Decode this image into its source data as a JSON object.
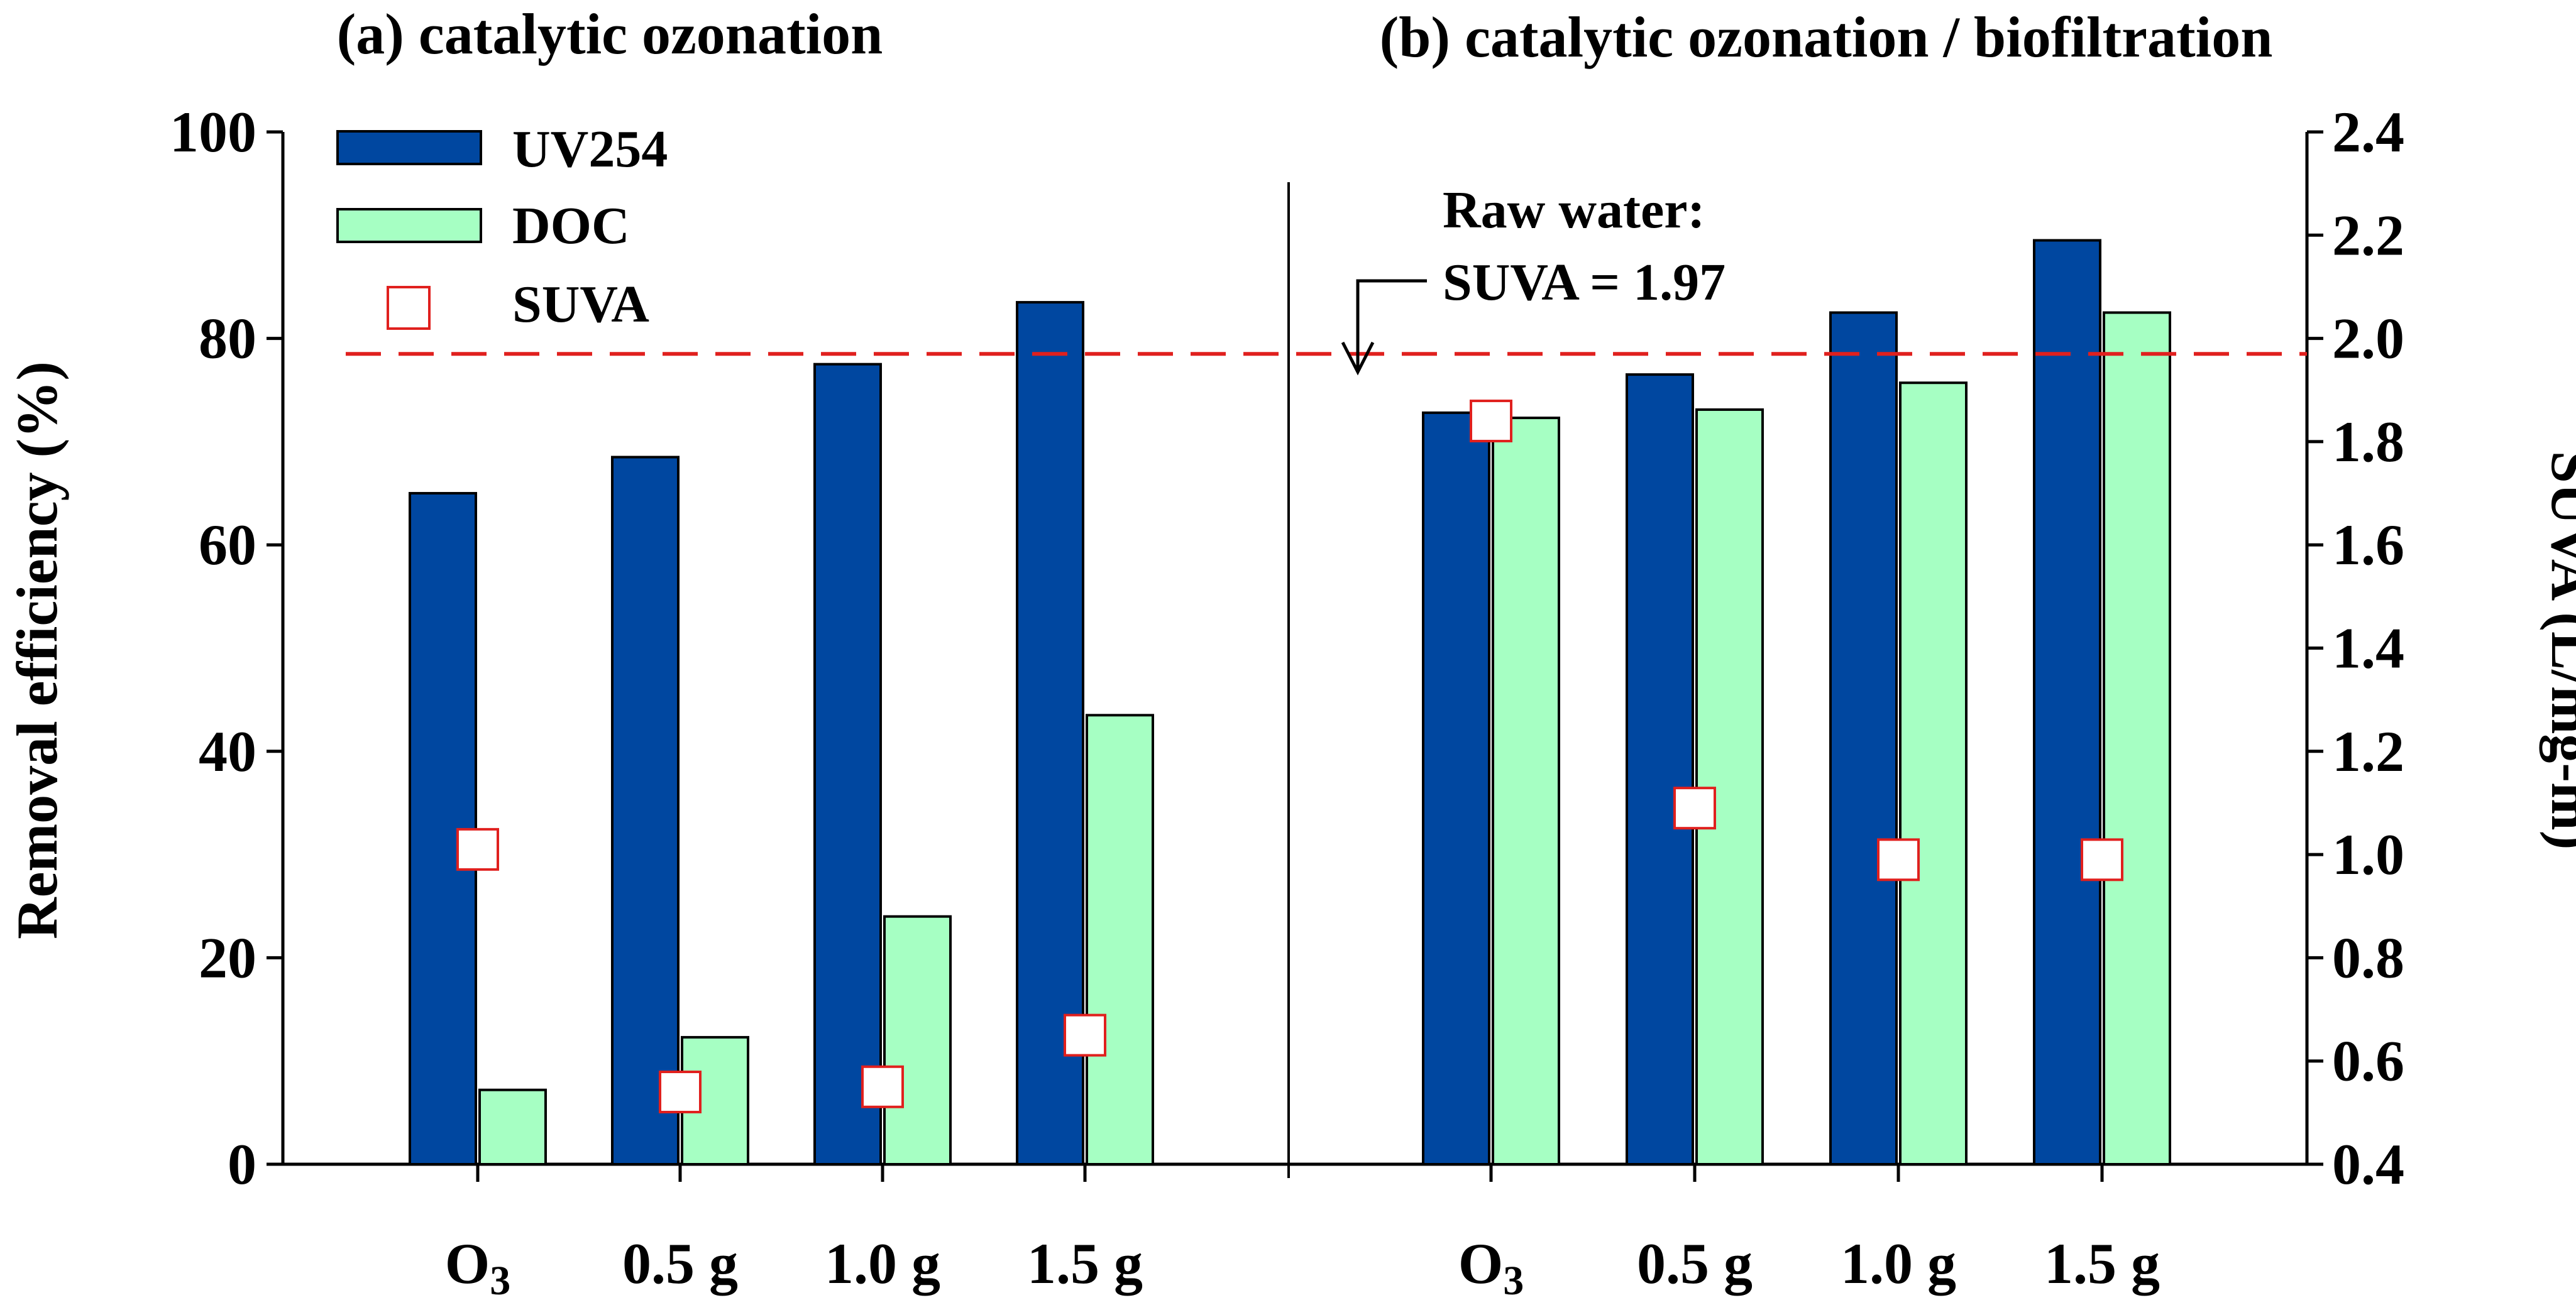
{
  "chart_data": {
    "type": "bar",
    "panel_titles": [
      "(a) catalytic ozonation",
      "(b) catalytic ozonation / biofiltration"
    ],
    "categories": [
      "O3",
      "0.5 g",
      "1.0 g",
      "1.5 g",
      "O3",
      "0.5 g",
      "1.0 g",
      "1.5 g"
    ],
    "category_subscripts": [
      "3",
      "",
      "",
      "",
      "3",
      "",
      "",
      ""
    ],
    "series": [
      {
        "name": "UV254",
        "axis": "left",
        "type": "bar",
        "color": "#0047a0",
        "values": [
          65.0,
          68.5,
          77.5,
          83.5,
          72.8,
          76.5,
          82.5,
          89.5
        ]
      },
      {
        "name": "DOC",
        "axis": "left",
        "type": "bar",
        "color": "#a6ffc3",
        "values": [
          7.2,
          12.3,
          24.0,
          43.5,
          72.3,
          73.1,
          75.7,
          82.5
        ]
      },
      {
        "name": "SUVA",
        "axis": "right",
        "type": "scatter",
        "color": "#e0201e",
        "values": [
          1.01,
          0.54,
          0.55,
          0.65,
          1.84,
          1.09,
          0.99,
          0.99
        ]
      }
    ],
    "legend": [
      "UV254",
      "DOC",
      "SUVA"
    ],
    "ylabel": "Removal efficiency (%)",
    "y2label": "SUVA (L/mg-m)",
    "ylim": [
      0,
      100
    ],
    "yticks": [
      0,
      20,
      40,
      60,
      80,
      100
    ],
    "y2lim": [
      0.4,
      2.4
    ],
    "y2ticks": [
      "0.4",
      "0.6",
      "0.8",
      "1.0",
      "1.2",
      "1.4",
      "1.6",
      "1.8",
      "2.0",
      "2.2",
      "2.4"
    ],
    "reference_line": {
      "axis": "right",
      "value": 1.97,
      "color": "#e0201e",
      "style": "dashed"
    },
    "annotation": [
      "Raw water:",
      "SUVA = 1.97"
    ]
  }
}
